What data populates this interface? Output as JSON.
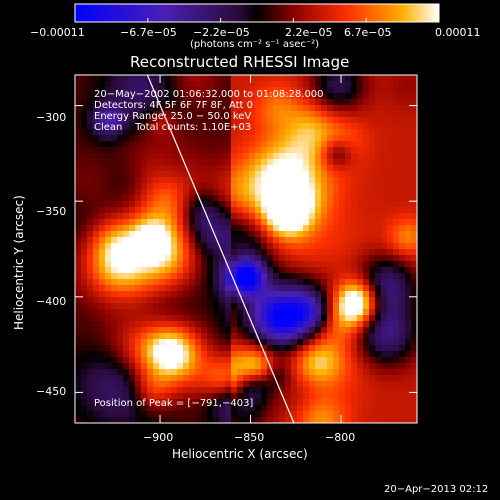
{
  "chart_data": {
    "type": "heatmap",
    "title": "Reconstructed RHESSI Image",
    "xlabel": "Heliocentric X (arcsec)",
    "ylabel": "Heliocentric Y (arcsec)",
    "xlim": [
      -947,
      -758
    ],
    "ylim": [
      -466,
      -284
    ],
    "x_ticks": [
      -900,
      -850,
      -800
    ],
    "y_ticks": [
      -300,
      -350,
      -400,
      -450
    ],
    "x_tick_labels": [
      "−900",
      "−850",
      "−800"
    ],
    "y_tick_labels": [
      "−300",
      "−350",
      "−400",
      "−450"
    ],
    "colorbar": {
      "min": -0.00011,
      "max": 0.00011,
      "tick_labels": [
        "−0.00011",
        "−6.7e−05",
        "−2.2e−05",
        "2.2e−05",
        "6.7e−05",
        "0.00011"
      ],
      "unit_label": "(photons cm⁻² s⁻¹ asec⁻²)"
    },
    "info_lines": [
      "20−May−2002 01:06:32.000 to 01:08:28.000",
      "Detectors: 4F 5F 6F 7F 8F, Att 0",
      "Energy Range: 25.0 − 50.0 keV",
      "Clean    Total counts: 1.10E+03"
    ],
    "peak_label": "Position of Peak = [−791,−403]",
    "peak_position": [
      -791,
      -403
    ],
    "limb_line": [
      [
        -907,
        -284
      ],
      [
        -826,
        -466
      ]
    ],
    "grid": false
  },
  "footer": {
    "date": "20−Apr−2013 02:12"
  },
  "colors": {
    "background": "#000000",
    "text": "#ffffff",
    "limb": "#ffffff"
  }
}
